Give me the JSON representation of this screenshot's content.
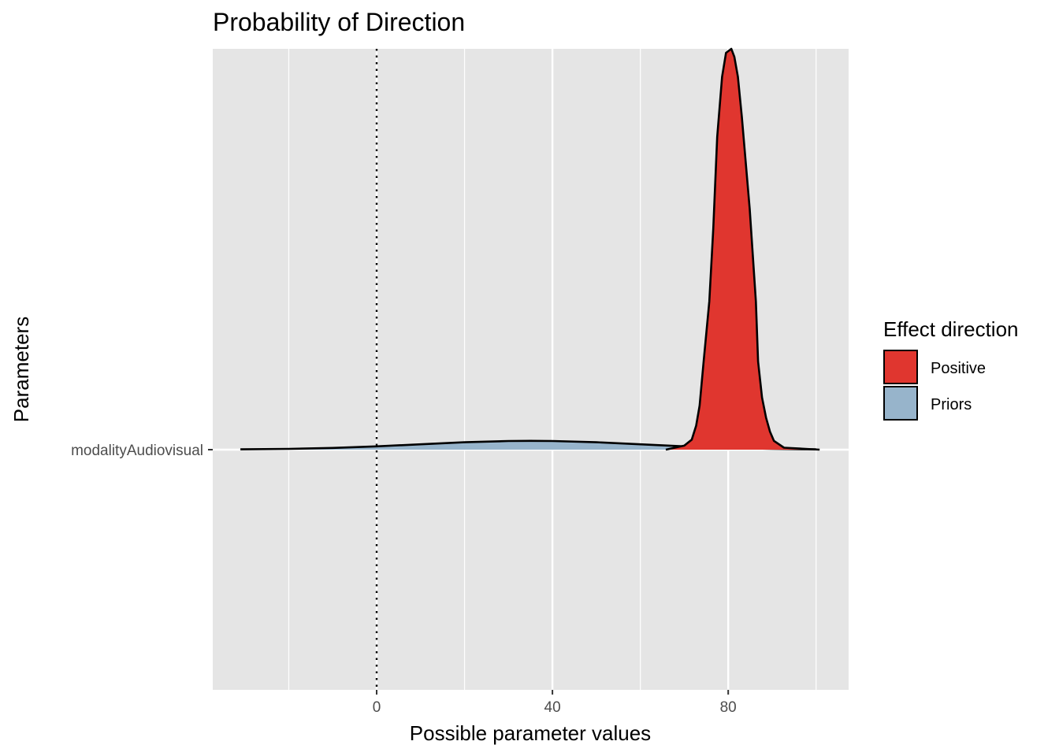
{
  "chart_data": {
    "type": "area",
    "title": "Probability of Direction",
    "xlabel": "Possible parameter values",
    "ylabel": "Parameters",
    "xlim": [
      -37.3,
      107.4
    ],
    "x_ticks": [
      0,
      40,
      80
    ],
    "x_tick_labels": [
      "0",
      "40",
      "80"
    ],
    "x_minor_grid": [
      -20,
      20,
      60,
      100
    ],
    "y_categories": [
      "modalityAudiovisual"
    ],
    "reference_line": {
      "x": 0,
      "style": "dotted"
    },
    "grid": true,
    "legend": {
      "title": "Effect direction",
      "placement": "right",
      "entries": [
        {
          "label": "Positive",
          "color": "#E0362F"
        },
        {
          "label": "Priors",
          "color": "#97B4CB"
        }
      ]
    },
    "series": [
      {
        "name": "Priors",
        "color": "#97B4CB",
        "x": [
          -31,
          -20,
          -10,
          0,
          10,
          20,
          30,
          35,
          40,
          50,
          60,
          70,
          80,
          90,
          100
        ],
        "density": [
          0.0007,
          0.002,
          0.0044,
          0.0083,
          0.0134,
          0.0184,
          0.0216,
          0.022,
          0.0216,
          0.0184,
          0.0134,
          0.0083,
          0.0044,
          0.002,
          0.0007
        ]
      },
      {
        "name": "Positive",
        "color": "#E0362F",
        "x": [
          65.8,
          70,
          71.7,
          72.7,
          73.5,
          74.4,
          75.7,
          76.6,
          77.5,
          78.6,
          79.5,
          80.7,
          81.4,
          82.2,
          83.1,
          84.9,
          86.3,
          86.8,
          87.7,
          88.6,
          89.5,
          90.4,
          92.7,
          100.8
        ],
        "density": [
          0,
          0.01,
          0.025,
          0.06,
          0.11,
          0.22,
          0.37,
          0.55,
          0.78,
          0.93,
          0.99,
          1.0,
          0.98,
          0.93,
          0.83,
          0.6,
          0.37,
          0.22,
          0.13,
          0.08,
          0.045,
          0.022,
          0.005,
          0
        ]
      }
    ]
  }
}
